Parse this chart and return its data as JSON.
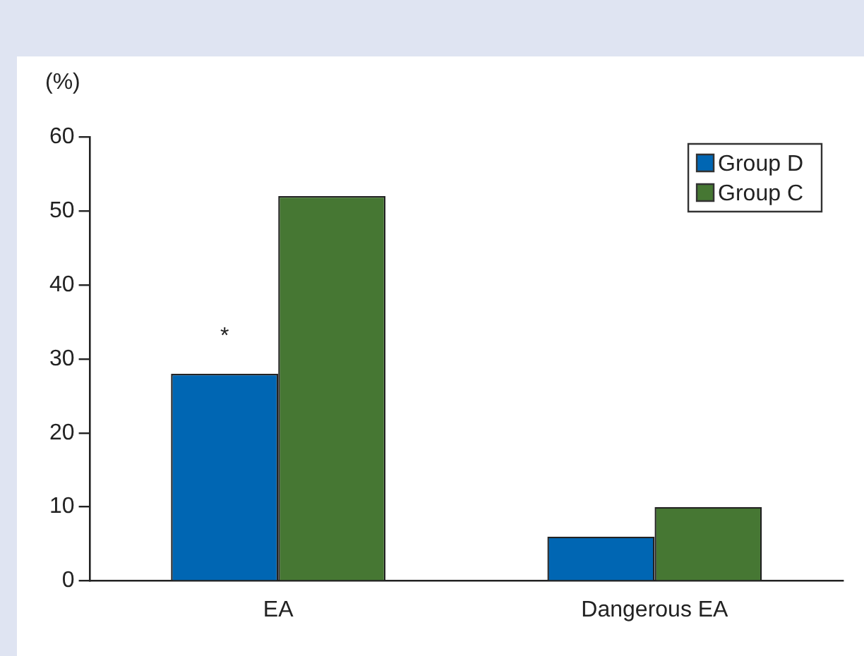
{
  "chart_data": {
    "type": "bar",
    "ylabel": "(%)",
    "categories": [
      "EA",
      "Dangerous EA"
    ],
    "series": [
      {
        "name": "Group D",
        "color": "#0066b3",
        "values": [
          28,
          6
        ]
      },
      {
        "name": "Group C",
        "color": "#467733",
        "values": [
          52,
          10
        ]
      }
    ],
    "ylim": [
      0,
      60
    ],
    "yticks": [
      0,
      10,
      20,
      30,
      40,
      50,
      60
    ],
    "grid": false,
    "legend": "top right",
    "annotations": [
      {
        "text": "*",
        "x": "EA",
        "y": 33
      }
    ]
  }
}
